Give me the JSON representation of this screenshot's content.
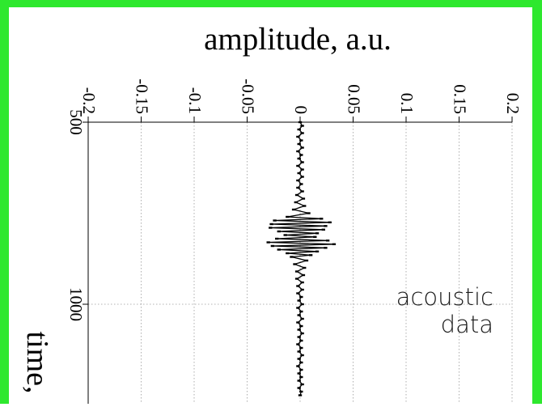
{
  "frame_color": "#2ee82e",
  "chart_data": {
    "type": "scatter",
    "title": "amplitude, a.u.",
    "xlabel": "amplitude, a.u.",
    "ylabel": "time,",
    "x_ticks": [
      -0.2,
      -0.15,
      -0.1,
      -0.05,
      0,
      0.05,
      0.1,
      0.15,
      0.2
    ],
    "x_tick_labels": [
      "-0.2",
      "-0.15",
      "-0.1",
      "-0.05",
      "0",
      "0.05",
      "0.1",
      "0.15",
      "0.2"
    ],
    "y_ticks": [
      500,
      1000
    ],
    "y_tick_labels": [
      "500",
      "1000"
    ],
    "xlim": [
      -0.2,
      0.2
    ],
    "ylim": [
      500,
      1250
    ],
    "y_axis_inverted": true,
    "grid": true,
    "annotation": [
      "acoustic",
      "data"
    ],
    "series": [
      {
        "points": [
          {
            "t": 500,
            "a": 0.0
          },
          {
            "t": 510,
            "a": 0.002
          },
          {
            "t": 520,
            "a": -0.001
          },
          {
            "t": 530,
            "a": 0.002
          },
          {
            "t": 540,
            "a": -0.002
          },
          {
            "t": 550,
            "a": 0.001
          },
          {
            "t": 560,
            "a": -0.001
          },
          {
            "t": 570,
            "a": 0.002
          },
          {
            "t": 580,
            "a": -0.002
          },
          {
            "t": 590,
            "a": 0.001
          },
          {
            "t": 600,
            "a": -0.001
          },
          {
            "t": 610,
            "a": 0.002
          },
          {
            "t": 620,
            "a": -0.002
          },
          {
            "t": 630,
            "a": 0.002
          },
          {
            "t": 640,
            "a": -0.001
          },
          {
            "t": 650,
            "a": 0.002
          },
          {
            "t": 660,
            "a": -0.002
          },
          {
            "t": 670,
            "a": 0.001
          },
          {
            "t": 680,
            "a": -0.002
          },
          {
            "t": 690,
            "a": 0.002
          },
          {
            "t": 700,
            "a": -0.003
          },
          {
            "t": 710,
            "a": 0.003
          },
          {
            "t": 720,
            "a": -0.004
          },
          {
            "t": 730,
            "a": 0.004
          },
          {
            "t": 740,
            "a": -0.006
          },
          {
            "t": 750,
            "a": 0.008
          },
          {
            "t": 760,
            "a": -0.012
          },
          {
            "t": 765,
            "a": 0.02
          },
          {
            "t": 770,
            "a": -0.024
          },
          {
            "t": 775,
            "a": 0.028
          },
          {
            "t": 780,
            "a": -0.027
          },
          {
            "t": 785,
            "a": 0.024
          },
          {
            "t": 790,
            "a": -0.028
          },
          {
            "t": 795,
            "a": 0.022
          },
          {
            "t": 800,
            "a": -0.02
          },
          {
            "t": 805,
            "a": 0.016
          },
          {
            "t": 810,
            "a": -0.014
          },
          {
            "t": 815,
            "a": 0.014
          },
          {
            "t": 820,
            "a": -0.022
          },
          {
            "t": 825,
            "a": 0.026
          },
          {
            "t": 830,
            "a": -0.03
          },
          {
            "t": 835,
            "a": 0.032
          },
          {
            "t": 840,
            "a": -0.026
          },
          {
            "t": 845,
            "a": 0.024
          },
          {
            "t": 850,
            "a": -0.02
          },
          {
            "t": 855,
            "a": 0.016
          },
          {
            "t": 860,
            "a": -0.012
          },
          {
            "t": 865,
            "a": 0.01
          },
          {
            "t": 870,
            "a": -0.008
          },
          {
            "t": 880,
            "a": 0.006
          },
          {
            "t": 890,
            "a": -0.005
          },
          {
            "t": 900,
            "a": 0.004
          },
          {
            "t": 910,
            "a": -0.003
          },
          {
            "t": 920,
            "a": 0.003
          },
          {
            "t": 930,
            "a": -0.003
          },
          {
            "t": 940,
            "a": 0.002
          },
          {
            "t": 950,
            "a": -0.002
          },
          {
            "t": 960,
            "a": 0.002
          },
          {
            "t": 970,
            "a": -0.002
          },
          {
            "t": 980,
            "a": 0.001
          },
          {
            "t": 990,
            "a": -0.001
          },
          {
            "t": 1000,
            "a": 0.002
          },
          {
            "t": 1010,
            "a": -0.002
          },
          {
            "t": 1020,
            "a": 0.001
          },
          {
            "t": 1030,
            "a": -0.001
          },
          {
            "t": 1040,
            "a": 0.002
          },
          {
            "t": 1050,
            "a": -0.002
          },
          {
            "t": 1060,
            "a": 0.001
          },
          {
            "t": 1070,
            "a": -0.001
          },
          {
            "t": 1080,
            "a": 0.002
          },
          {
            "t": 1090,
            "a": -0.001
          },
          {
            "t": 1100,
            "a": 0.001
          },
          {
            "t": 1110,
            "a": -0.002
          },
          {
            "t": 1120,
            "a": 0.001
          },
          {
            "t": 1130,
            "a": -0.001
          },
          {
            "t": 1140,
            "a": 0.002
          },
          {
            "t": 1150,
            "a": -0.001
          },
          {
            "t": 1160,
            "a": 0.001
          },
          {
            "t": 1170,
            "a": -0.002
          },
          {
            "t": 1180,
            "a": 0.001
          },
          {
            "t": 1190,
            "a": -0.001
          },
          {
            "t": 1200,
            "a": 0.001
          },
          {
            "t": 1210,
            "a": -0.001
          },
          {
            "t": 1220,
            "a": 0.002
          },
          {
            "t": 1230,
            "a": -0.001
          },
          {
            "t": 1240,
            "a": 0.001
          },
          {
            "t": 1250,
            "a": 0.0
          }
        ]
      }
    ]
  }
}
